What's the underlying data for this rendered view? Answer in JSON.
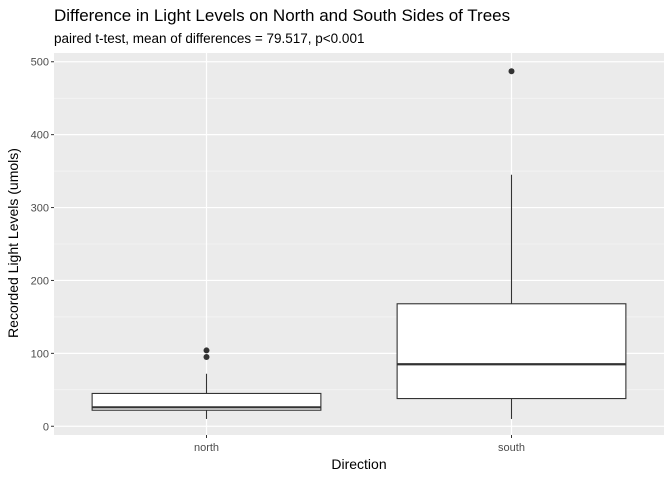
{
  "chart_data": {
    "type": "boxplot",
    "title": "Difference in Light Levels on North and South Sides of Trees",
    "subtitle": "paired t-test, mean of differences = 79.517, p<0.001",
    "xlabel": "Direction",
    "ylabel": "Recorded Light Levels (umols)",
    "ylim": [
      -12,
      512
    ],
    "yticks": [
      0,
      100,
      200,
      300,
      400,
      500
    ],
    "y_tick_labels": [
      "0",
      "100",
      "200",
      "300",
      "400",
      "500"
    ],
    "grid": true,
    "categories": [
      "north",
      "south"
    ],
    "boxes": [
      {
        "category": "north",
        "whisker_low": 10,
        "q1": 22,
        "median": 26,
        "q3": 45,
        "whisker_high": 72,
        "outliers": [
          95,
          104
        ]
      },
      {
        "category": "south",
        "whisker_low": 10,
        "q1": 38,
        "median": 85,
        "q3": 168,
        "whisker_high": 345,
        "outliers": [
          487
        ]
      }
    ],
    "colors": {
      "panel": "#ebebeb",
      "grid_major": "#ffffff",
      "box_fill": "#ffffff",
      "box_line": "#333333"
    }
  }
}
